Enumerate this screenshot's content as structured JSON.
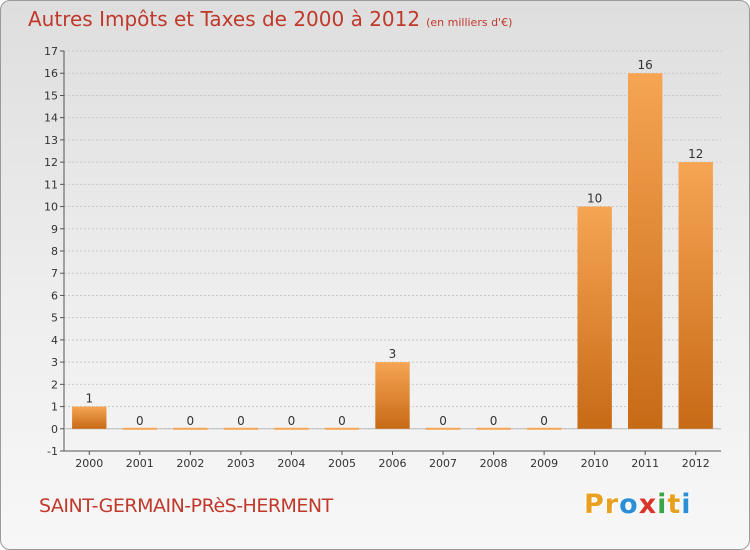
{
  "title": "Autres Impôts et Taxes de 2000 à 2012",
  "unit": "(en milliers d'€)",
  "commune": "SAINT-GERMAIN-PRèS-HERMENT",
  "logo": {
    "letters": [
      "P",
      "r",
      "o",
      "x",
      "i",
      "t",
      "i"
    ],
    "colors": [
      "#e8a020",
      "#e8a020",
      "#2a8fd6",
      "#d9352b",
      "#3aa546",
      "#e8a020",
      "#2a8fd6"
    ]
  },
  "colors": {
    "bar_top": "#f6a553",
    "bar_bottom": "#c76a16",
    "accent": "#c0392b"
  },
  "chart_data": {
    "type": "bar",
    "categories": [
      "2000",
      "2001",
      "2002",
      "2003",
      "2004",
      "2005",
      "2006",
      "2007",
      "2008",
      "2009",
      "2010",
      "2011",
      "2012"
    ],
    "values": [
      1,
      0,
      0,
      0,
      0,
      0,
      3,
      0,
      0,
      0,
      10,
      16,
      12
    ],
    "data_labels": [
      "1",
      "0",
      "0",
      "0",
      "0",
      "0",
      "3",
      "0",
      "0",
      "0",
      "10",
      "16",
      "12"
    ],
    "yticks": [
      "-1",
      "0",
      "1",
      "2",
      "3",
      "4",
      "5",
      "6",
      "7",
      "8",
      "9",
      "10",
      "11",
      "12",
      "13",
      "14",
      "15",
      "16",
      "17"
    ],
    "ylim": [
      -1,
      17
    ],
    "grid": true,
    "legend": "none"
  }
}
